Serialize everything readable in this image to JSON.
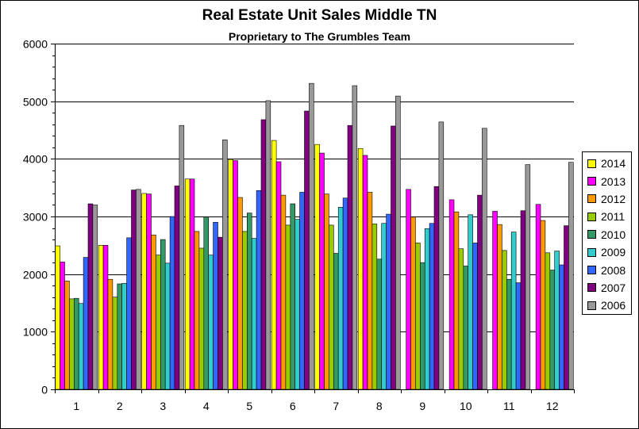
{
  "chart_data": {
    "type": "bar",
    "title": "Real Estate Unit Sales Middle TN",
    "subtitle": "Proprietary to The Grumbles Team",
    "xlabel": "",
    "ylabel": "",
    "ylim": [
      0,
      6000
    ],
    "yticks": [
      0,
      1000,
      2000,
      3000,
      4000,
      5000,
      6000
    ],
    "grid": true,
    "legend_position": "right",
    "categories": [
      "1",
      "2",
      "3",
      "4",
      "5",
      "6",
      "7",
      "8",
      "9",
      "10",
      "11",
      "12"
    ],
    "series": [
      {
        "name": "2014",
        "color": "#ffff00",
        "values": [
          2490,
          2500,
          3400,
          3650,
          3990,
          4320,
          4250,
          4180,
          null,
          null,
          null,
          null
        ]
      },
      {
        "name": "2013",
        "color": "#ff00ff",
        "values": [
          2210,
          2500,
          3390,
          3650,
          3970,
          3950,
          4100,
          4060,
          3470,
          3290,
          3090,
          3210
        ]
      },
      {
        "name": "2012",
        "color": "#ff9900",
        "values": [
          1880,
          1910,
          2680,
          2740,
          3330,
          3370,
          3390,
          3420,
          2990,
          3080,
          2860,
          2930
        ]
      },
      {
        "name": "2011",
        "color": "#99cc00",
        "values": [
          1570,
          1600,
          2330,
          2450,
          2740,
          2850,
          2850,
          2870,
          2540,
          2440,
          2410,
          2370
        ]
      },
      {
        "name": "2010",
        "color": "#339966",
        "values": [
          1580,
          1830,
          2600,
          2990,
          3060,
          3220,
          2360,
          2260,
          2200,
          2140,
          1910,
          2070
        ]
      },
      {
        "name": "2009",
        "color": "#33cccc",
        "values": [
          1490,
          1840,
          2190,
          2330,
          2620,
          2950,
          3160,
          2880,
          2790,
          3030,
          2730,
          2400
        ]
      },
      {
        "name": "2008",
        "color": "#3366ff",
        "values": [
          2290,
          2630,
          3000,
          2900,
          3450,
          3420,
          3320,
          3040,
          2880,
          2540,
          1850,
          2160
        ]
      },
      {
        "name": "2007",
        "color": "#800080",
        "values": [
          3220,
          3460,
          3530,
          2640,
          4680,
          4830,
          4580,
          4570,
          3520,
          3370,
          3100,
          2840
        ]
      },
      {
        "name": "2006",
        "color": "#999999",
        "values": [
          3200,
          3470,
          4580,
          4330,
          5010,
          5310,
          5270,
          5090,
          4640,
          4530,
          3900,
          3940
        ]
      }
    ]
  }
}
